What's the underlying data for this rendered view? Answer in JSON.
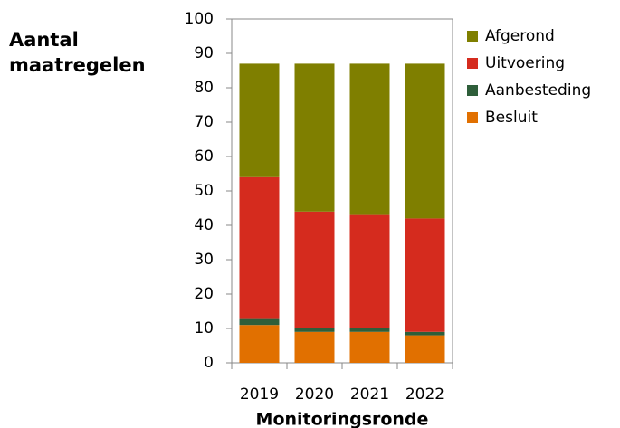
{
  "chart_data": {
    "type": "stacked-bar",
    "title": "Aantal maatregelen",
    "x_label": "Monitoringsronde",
    "categories": [
      "2019",
      "2020",
      "2021",
      "2022"
    ],
    "series": [
      {
        "name": "Besluit",
        "color": "#e17000",
        "values": [
          11,
          9,
          9,
          8
        ]
      },
      {
        "name": "Aanbesteding",
        "color": "#2e5e3a",
        "values": [
          2,
          1,
          1,
          1
        ]
      },
      {
        "name": "Uitvoering",
        "color": "#d52b1e",
        "values": [
          41,
          34,
          33,
          33
        ]
      },
      {
        "name": "Afgerond",
        "color": "#7f7f00",
        "values": [
          33,
          43,
          44,
          45
        ]
      }
    ],
    "ylim": [
      0,
      100
    ],
    "yticks": [
      0,
      10,
      20,
      30,
      40,
      50,
      60,
      70,
      80,
      90,
      100
    ],
    "legend": "right"
  }
}
